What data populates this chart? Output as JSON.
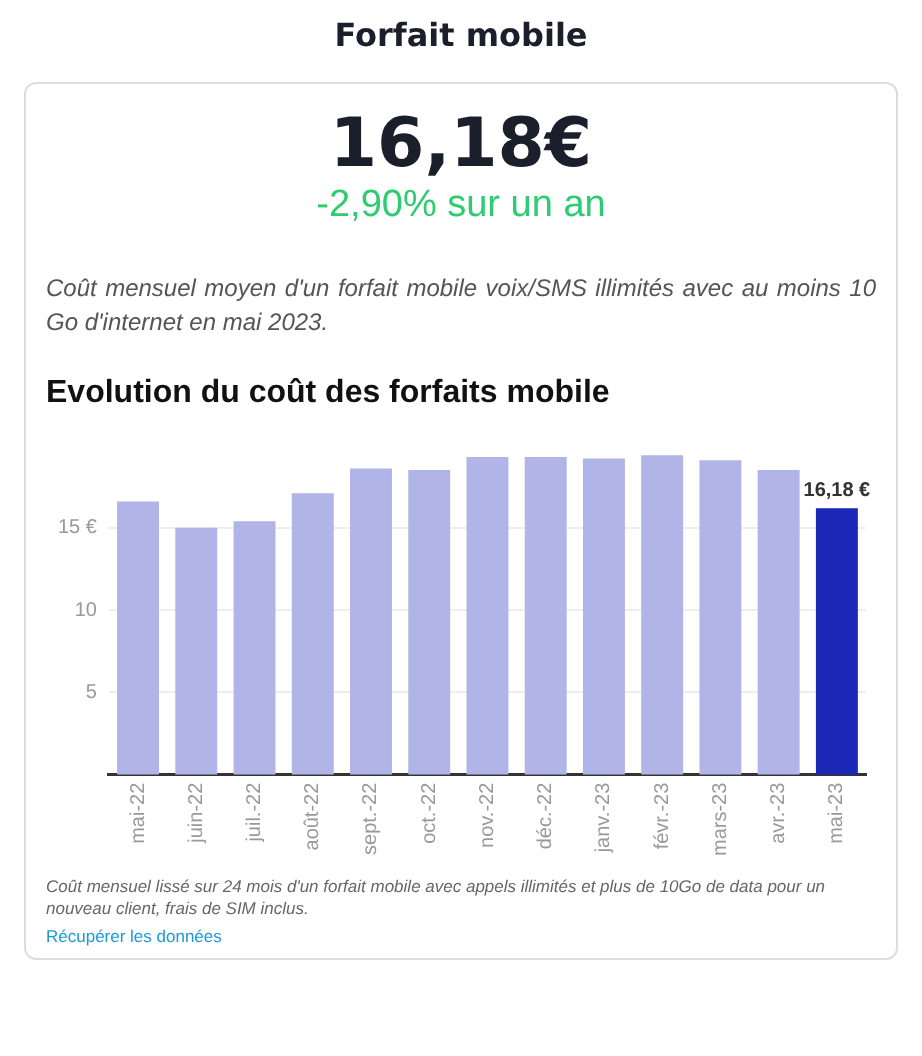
{
  "chart_data": {
    "type": "bar",
    "title": "Evolution du coût des forfaits mobile",
    "categories": [
      "mai-22",
      "juin-22",
      "juil.-22",
      "août-22",
      "sept.-22",
      "oct.-22",
      "nov.-22",
      "déc.-22",
      "janv.-23",
      "févr.-23",
      "mars-23",
      "avr.-23",
      "mai-23"
    ],
    "values": [
      16.6,
      15.0,
      15.4,
      17.1,
      18.6,
      18.5,
      19.3,
      19.3,
      19.2,
      19.4,
      19.1,
      18.5,
      16.18
    ],
    "colors": [
      "#b0b4e6",
      "#b0b4e6",
      "#b0b4e6",
      "#b0b4e6",
      "#b0b4e6",
      "#b0b4e6",
      "#b0b4e6",
      "#b0b4e6",
      "#b0b4e6",
      "#b0b4e6",
      "#b0b4e6",
      "#b0b4e6",
      "#1a27b5"
    ],
    "value_labels": [
      null,
      null,
      null,
      null,
      null,
      null,
      null,
      null,
      null,
      null,
      null,
      null,
      "16,18 €"
    ],
    "ylim": [
      0,
      19.6
    ],
    "yticks": [
      5,
      10,
      {
        "value": 15,
        "label": "15 €"
      }
    ],
    "grid": "y",
    "annotations": [
      "Forfait mobile",
      "16,18€",
      "-2,90% sur un an",
      "Coût mensuel moyen d'un forfait mobile voix/SMS illimités avec au moins 10 Go d'internet en mai 2023.",
      "Coût mensuel lissé sur 24 mois d'un forfait mobile avec appels illimités et plus de 10Go de data pour un nouveau client, frais de SIM inclus.",
      "Récupérer les données"
    ]
  }
}
